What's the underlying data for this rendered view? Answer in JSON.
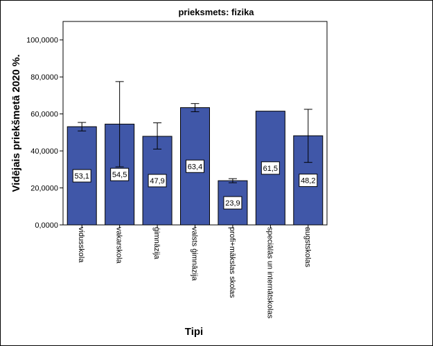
{
  "chart_data": {
    "type": "bar",
    "title": "prieksmets: fizika",
    "xlabel": "Tipi",
    "ylabel": "Vidējais priekšmetā 2020 %.",
    "ylim": [
      0,
      110
    ],
    "yticks": [
      0,
      20,
      40,
      60,
      80,
      100
    ],
    "ytick_labels": [
      "0,0000",
      "20,0000",
      "40,0000",
      "60,0000",
      "80,0000",
      "100,0000"
    ],
    "categories": [
      "vidusskola",
      "vakarskola",
      "ģimnāzija",
      "valsts ģimnāzija",
      "profi+mākslas skolas",
      "speciālās un internātskolas",
      "augstskolas"
    ],
    "values": [
      53.1,
      54.5,
      47.9,
      63.4,
      23.9,
      61.5,
      48.2
    ],
    "value_labels": [
      "53,1",
      "54,5",
      "47,9",
      "63,4",
      "23,9",
      "61,5",
      "48,2"
    ],
    "error_bars": [
      {
        "low": 50.8,
        "high": 55.4
      },
      {
        "low": 31.4,
        "high": 77.5
      },
      {
        "low": 41.0,
        "high": 55.2
      },
      {
        "low": 61.2,
        "high": 65.6
      },
      {
        "low": 22.8,
        "high": 25.0
      },
      null,
      {
        "low": 33.8,
        "high": 62.5
      }
    ],
    "grid": false,
    "legend": "none",
    "colors": {
      "bar": "#4057A8",
      "bar_border": "#000000",
      "label_bg": "#ffffff"
    }
  }
}
